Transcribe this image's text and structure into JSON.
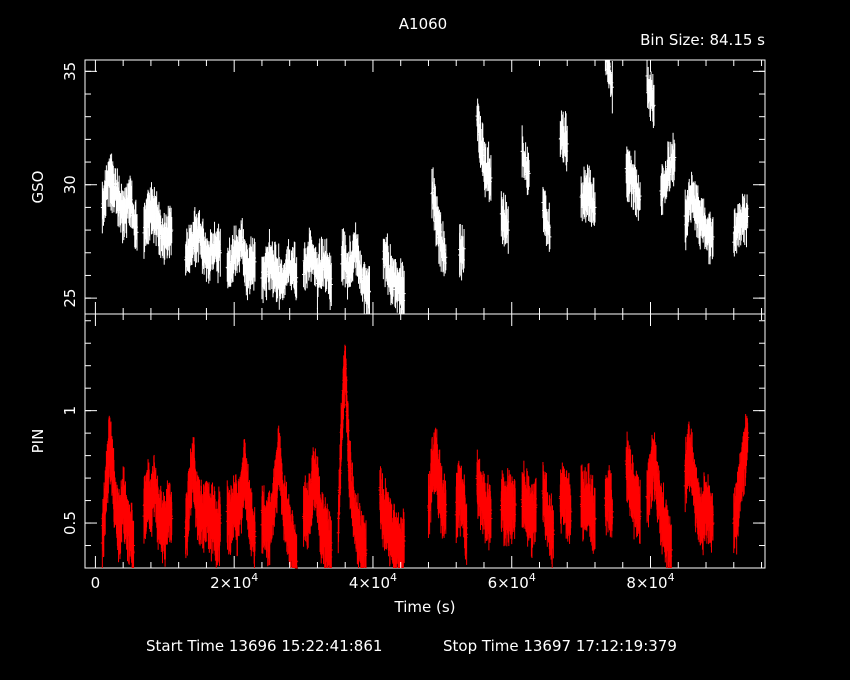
{
  "chart_data": {
    "type": "line",
    "title": "A1060",
    "bin_size": "Bin Size:  84.15 s",
    "xlabel": "Time (s)",
    "xlim": [
      -1500,
      96500
    ],
    "x_ticks": [
      {
        "value": 0,
        "label": "0"
      },
      {
        "value": 20000,
        "mant": "2×10",
        "exp": "4"
      },
      {
        "value": 40000,
        "mant": "4×10",
        "exp": "4"
      },
      {
        "value": 60000,
        "mant": "6×10",
        "exp": "4"
      },
      {
        "value": 80000,
        "mant": "8×10",
        "exp": "4"
      }
    ],
    "footer": {
      "start": "Start Time 13696  15:22:41:861",
      "stop": "Stop Time 13697  17:12:19:379"
    },
    "panels": [
      {
        "ylabel": "GSO",
        "color": "#ffffff",
        "ylim": [
          24.3,
          35.5
        ],
        "yticks": [
          25,
          30,
          35
        ],
        "segments": [
          {
            "x": [
              1000,
              2000,
              3000,
              4000,
              5000,
              6000
            ],
            "y": [
              29.0,
              30.4,
              29.6,
              28.7,
              29.4,
              27.9
            ]
          },
          {
            "x": [
              7000,
              8000,
              9000,
              10000,
              11000
            ],
            "y": [
              28.2,
              29.1,
              28.3,
              27.6,
              28.0
            ]
          },
          {
            "x": [
              13000,
              14000,
              15000,
              16000,
              17000,
              18000
            ],
            "y": [
              26.8,
              27.6,
              28.0,
              26.6,
              27.2,
              27.0
            ]
          },
          {
            "x": [
              19000,
              20000,
              21000,
              22000,
              23000
            ],
            "y": [
              26.0,
              26.9,
              27.6,
              26.2,
              26.6
            ]
          },
          {
            "x": [
              24000,
              25000,
              26000,
              27000,
              28000,
              29000
            ],
            "y": [
              26.0,
              26.6,
              26.2,
              25.8,
              26.5,
              25.9
            ]
          },
          {
            "x": [
              30000,
              31000,
              32000,
              33000,
              34000
            ],
            "y": [
              26.3,
              26.9,
              26.0,
              26.6,
              25.6
            ]
          },
          {
            "x": [
              35500,
              36500,
              37500,
              38500,
              39500
            ],
            "y": [
              26.8,
              26.2,
              27.2,
              25.6,
              25.3
            ]
          },
          {
            "x": [
              41500,
              42500,
              43500,
              44500
            ],
            "y": [
              27.0,
              26.0,
              25.6,
              25.2
            ]
          },
          {
            "x": [
              48500,
              49500,
              50500
            ],
            "y": [
              29.8,
              27.9,
              26.8
            ]
          },
          {
            "x": [
              52500
            ],
            "y": [
              26.9
            ]
          },
          {
            "x": [
              55000,
              56000,
              57000
            ],
            "y": [
              33.0,
              30.9,
              30.3
            ]
          },
          {
            "x": [
              58500,
              59500
            ],
            "y": [
              28.6,
              28.0
            ]
          },
          {
            "x": [
              61500,
              62500
            ],
            "y": [
              31.4,
              30.5
            ]
          },
          {
            "x": [
              64500,
              65500
            ],
            "y": [
              28.9,
              27.7
            ]
          },
          {
            "x": [
              67000,
              68000
            ],
            "y": [
              32.3,
              31.8
            ]
          },
          {
            "x": [
              70000,
              71000,
              72000
            ],
            "y": [
              29.3,
              29.6,
              29.0
            ]
          },
          {
            "x": [
              73500,
              74500
            ],
            "y": [
              36.0,
              34.3
            ]
          },
          {
            "x": [
              76500,
              77500,
              78500
            ],
            "y": [
              30.7,
              30.2,
              29.5
            ]
          },
          {
            "x": [
              79500,
              80500
            ],
            "y": [
              34.5,
              33.5
            ]
          },
          {
            "x": [
              81500,
              82500,
              83500
            ],
            "y": [
              29.6,
              30.6,
              31.2
            ]
          },
          {
            "x": [
              85000,
              86000,
              87000,
              88000,
              89000
            ],
            "y": [
              28.4,
              29.6,
              28.6,
              28.0,
              27.7
            ]
          },
          {
            "x": [
              92000,
              93000,
              94000
            ],
            "y": [
              27.8,
              28.4,
              28.6
            ]
          }
        ]
      },
      {
        "ylabel": "PIN",
        "color": "#ff0000",
        "ylim": [
          0.3,
          1.43
        ],
        "yticks": [
          0.5,
          1
        ],
        "yticklabels": [
          "0.5",
          "1"
        ],
        "segments": [
          {
            "x": [
              1000,
              1500,
              2000,
              2500,
              3000,
              3500,
              4000,
              4500,
              5000,
              5500
            ],
            "y": [
              0.45,
              0.62,
              0.85,
              0.72,
              0.55,
              0.48,
              0.6,
              0.52,
              0.46,
              0.4
            ]
          },
          {
            "x": [
              7000,
              7500,
              8000,
              8500,
              9000,
              9500,
              10000,
              10500,
              11000
            ],
            "y": [
              0.55,
              0.62,
              0.58,
              0.7,
              0.54,
              0.5,
              0.48,
              0.57,
              0.52
            ]
          },
          {
            "x": [
              13000,
              13500,
              14000,
              14500,
              15000,
              15500,
              16000,
              16500,
              17000,
              17500,
              18000
            ],
            "y": [
              0.45,
              0.6,
              0.78,
              0.62,
              0.55,
              0.5,
              0.58,
              0.52,
              0.5,
              0.46,
              0.5
            ]
          },
          {
            "x": [
              19000,
              19500,
              20000,
              20500,
              21000,
              21500,
              22000,
              22500,
              23000
            ],
            "y": [
              0.55,
              0.5,
              0.6,
              0.52,
              0.62,
              0.75,
              0.58,
              0.48,
              0.44
            ]
          },
          {
            "x": [
              24000,
              24500,
              25000,
              25500,
              26000,
              26500,
              27000,
              27500,
              28000,
              28500,
              29000
            ],
            "y": [
              0.52,
              0.48,
              0.46,
              0.55,
              0.68,
              0.8,
              0.6,
              0.52,
              0.45,
              0.38,
              0.33
            ]
          },
          {
            "x": [
              30000,
              30500,
              31000,
              31500,
              32000,
              32500,
              33000,
              33500,
              34000
            ],
            "y": [
              0.56,
              0.52,
              0.6,
              0.72,
              0.66,
              0.5,
              0.46,
              0.42,
              0.38
            ]
          },
          {
            "x": [
              35000,
              35500,
              36000,
              36500,
              37000,
              37500,
              38000,
              38500,
              39000
            ],
            "y": [
              0.5,
              0.95,
              1.22,
              0.8,
              0.6,
              0.5,
              0.45,
              0.4,
              0.38
            ]
          },
          {
            "x": [
              41000,
              41500,
              42000,
              42500,
              43000,
              43500,
              44000,
              44500
            ],
            "y": [
              0.62,
              0.55,
              0.5,
              0.45,
              0.42,
              0.4,
              0.38,
              0.42
            ]
          },
          {
            "x": [
              48000,
              48500,
              49000,
              49500,
              50000,
              50500
            ],
            "y": [
              0.55,
              0.72,
              0.8,
              0.68,
              0.58,
              0.55
            ]
          },
          {
            "x": [
              52000,
              52500,
              53000,
              53500
            ],
            "y": [
              0.55,
              0.62,
              0.6,
              0.45
            ]
          },
          {
            "x": [
              55000,
              55500,
              56000,
              56500,
              57000
            ],
            "y": [
              0.7,
              0.62,
              0.58,
              0.55,
              0.52
            ]
          },
          {
            "x": [
              58500,
              59000,
              59500,
              60000,
              60500
            ],
            "y": [
              0.6,
              0.56,
              0.58,
              0.55,
              0.58
            ]
          },
          {
            "x": [
              61500,
              62000,
              62500,
              63000,
              63500
            ],
            "y": [
              0.62,
              0.58,
              0.55,
              0.52,
              0.58
            ]
          },
          {
            "x": [
              64500,
              65000,
              65500,
              66000
            ],
            "y": [
              0.62,
              0.55,
              0.48,
              0.45
            ]
          },
          {
            "x": [
              67000,
              67500,
              68000,
              68500
            ],
            "y": [
              0.6,
              0.62,
              0.58,
              0.55
            ]
          },
          {
            "x": [
              70000,
              70500,
              71000,
              71500,
              72000
            ],
            "y": [
              0.62,
              0.58,
              0.62,
              0.55,
              0.52
            ]
          },
          {
            "x": [
              73500,
              74000,
              74500
            ],
            "y": [
              0.58,
              0.6,
              0.55
            ]
          },
          {
            "x": [
              76500,
              77000,
              77500,
              78000,
              78500
            ],
            "y": [
              0.75,
              0.7,
              0.62,
              0.58,
              0.55
            ]
          },
          {
            "x": [
              79500,
              80000,
              80500,
              81000,
              81500,
              82000,
              82500,
              83000
            ],
            "y": [
              0.6,
              0.72,
              0.78,
              0.65,
              0.55,
              0.48,
              0.42,
              0.38
            ]
          },
          {
            "x": [
              85000,
              85500,
              86000,
              86500,
              87000,
              87500,
              88000,
              88500,
              89000
            ],
            "y": [
              0.7,
              0.8,
              0.75,
              0.62,
              0.55,
              0.52,
              0.58,
              0.55,
              0.5
            ]
          },
          {
            "x": [
              92000,
              92500,
              93000,
              93500,
              94000
            ],
            "y": [
              0.52,
              0.55,
              0.7,
              0.8,
              0.88
            ]
          }
        ]
      }
    ]
  }
}
